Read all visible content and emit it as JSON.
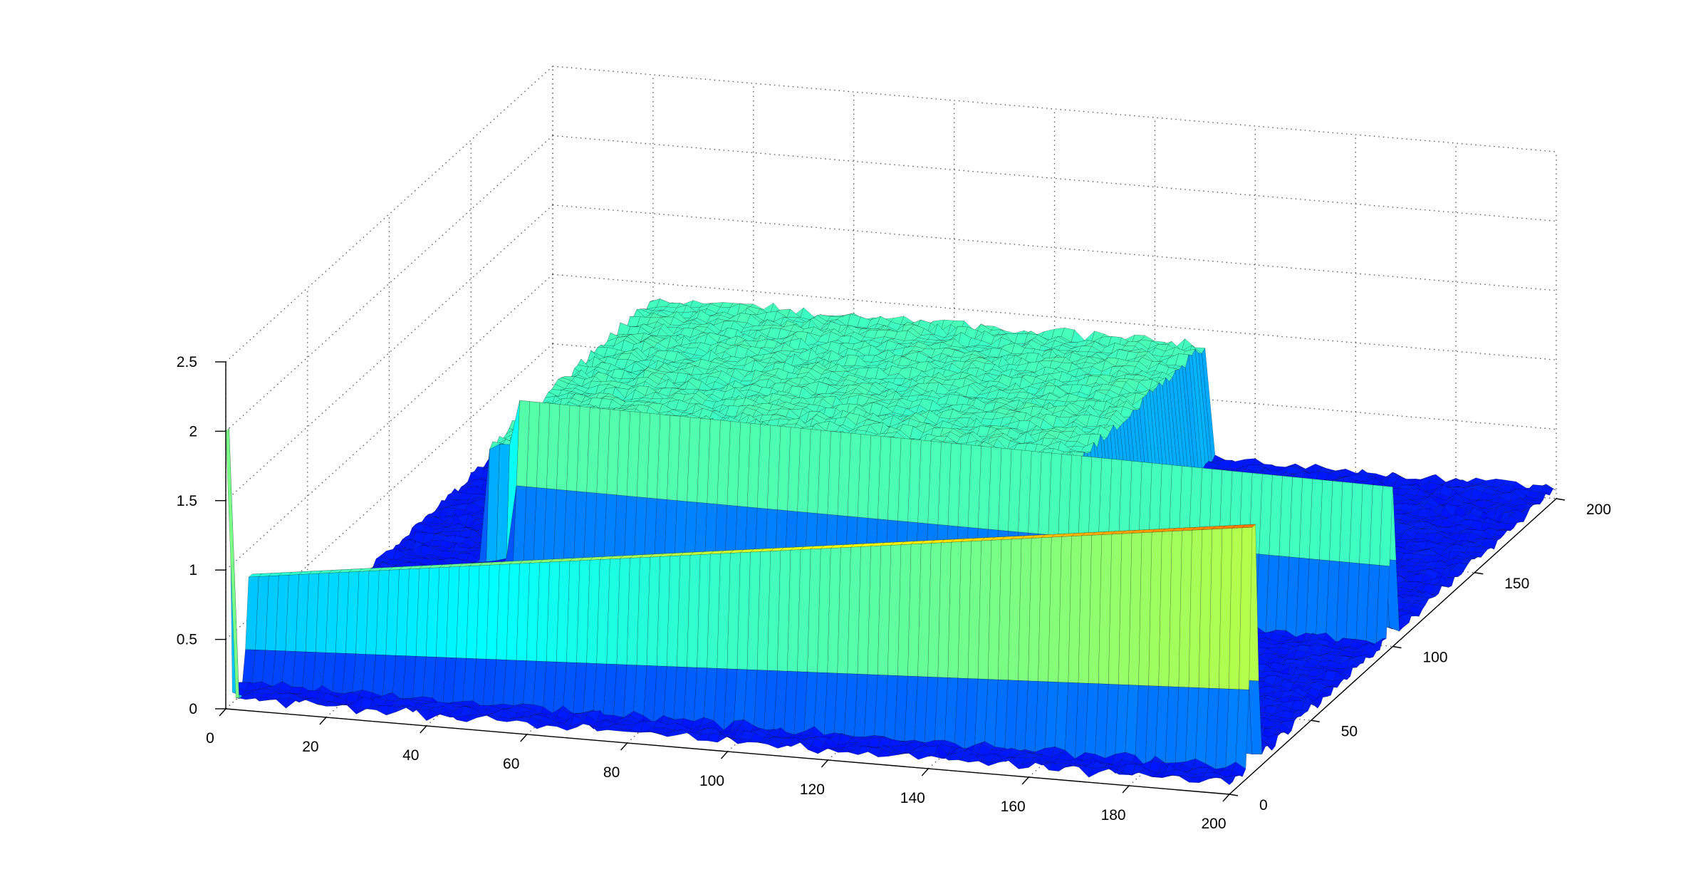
{
  "chart_data": {
    "type": "surface3d",
    "title": "",
    "xlabel": "",
    "ylabel": "",
    "zlabel": "",
    "x_ticks": [
      "0",
      "20",
      "40",
      "60",
      "80",
      "100",
      "120",
      "140",
      "160",
      "180",
      "200"
    ],
    "y_ticks": [
      "0",
      "50",
      "100",
      "150",
      "200"
    ],
    "z_ticks": [
      "0",
      "0.5",
      "1",
      "1.5",
      "2",
      "2.5"
    ],
    "x_range": [
      0,
      200
    ],
    "y_range": [
      0,
      200
    ],
    "z_range": [
      0,
      2.5
    ],
    "grid": true,
    "colormap": "jet",
    "colors": {
      "low": "#0000c8",
      "mid": "#00ffff",
      "high": "#ffff00",
      "max": "#800000",
      "edge": "#000000"
    },
    "features": {
      "base_level": 0.05,
      "spike": {
        "x": 1,
        "y": 0,
        "z": 2.0
      },
      "near_ridge": {
        "y": 15,
        "z_start": 1.0,
        "z_end": 2.3,
        "description_none": true
      },
      "far_ridge": {
        "y": 100,
        "z_start": 1.2,
        "z_end": 1.1
      },
      "plateau": {
        "x_from": 20,
        "y_from": 100,
        "z": 1.0
      }
    }
  }
}
